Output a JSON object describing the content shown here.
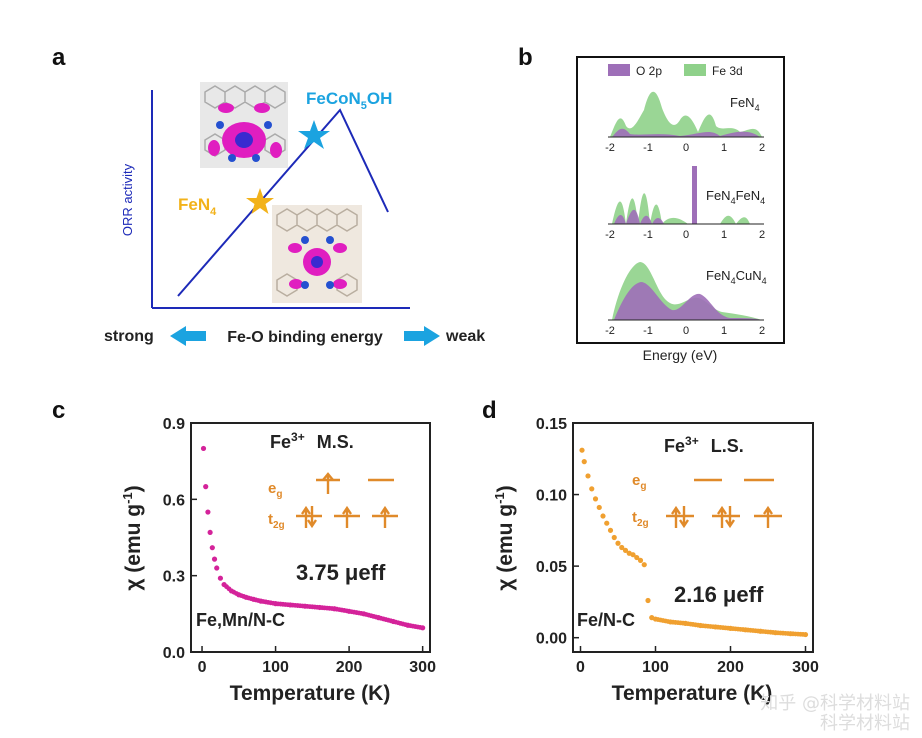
{
  "panel_labels": [
    "a",
    "b",
    "c",
    "d"
  ],
  "panel_a": {
    "ylabel": "ORR activity",
    "xlabel": "Fe-O binding energy",
    "left_label": "strong",
    "right_label": "weak",
    "point_low": {
      "base": "FeN",
      "sub": "4"
    },
    "point_high": {
      "base": "FeCoN",
      "sub": "5",
      "tail": "OH"
    },
    "colors": {
      "axis": "#1d2ab8",
      "arrow": "#1ba3e0",
      "feN4": "#f2b21a",
      "fecon5oh": "#1ba3e0"
    }
  },
  "panel_b": {
    "legend": [
      "O 2p",
      "Fe 3d"
    ],
    "xlabel": "Energy (eV)",
    "ticks": [
      "-2",
      "-1",
      "0",
      "1",
      "2"
    ],
    "subplots": [
      {
        "label_parts": [
          "FeN",
          "4"
        ]
      },
      {
        "label_parts": [
          "FeN",
          "4",
          "FeN",
          "4"
        ]
      },
      {
        "label_parts": [
          "FeN",
          "4",
          "CuN",
          "4"
        ]
      }
    ],
    "colors": {
      "o2p": "#9e6fb8",
      "fe3d": "#8fd18a"
    }
  },
  "chart_data": [
    {
      "type": "scatter",
      "panel": "c",
      "xlabel": "Temperature (K)",
      "ylabel": "χ (emu g-1)",
      "ylabel_parts": [
        "χ (emu g",
        "-1",
        ")"
      ],
      "xlim": [
        -15,
        310
      ],
      "ylim": [
        0.0,
        0.9
      ],
      "xticks": [
        "0",
        "100",
        "200",
        "300"
      ],
      "yticks": [
        "0.0",
        "0.3",
        "0.6",
        "0.9"
      ],
      "color": "#d4239a",
      "annotation": "3.75 μeff",
      "sample": "Fe,Mn/N-C",
      "ion": {
        "base": "Fe",
        "sup": "3+",
        "state": "M.S."
      },
      "orbitals": {
        "upper": "eg",
        "lower": "t2g",
        "upper_sub": "g",
        "lower_sub": "2g"
      },
      "x": [
        2,
        5,
        8,
        11,
        14,
        17,
        20,
        25,
        30,
        40,
        50,
        60,
        70,
        80,
        100,
        120,
        140,
        160,
        180,
        200,
        220,
        240,
        260,
        280,
        300
      ],
      "y": [
        0.8,
        0.65,
        0.55,
        0.47,
        0.41,
        0.365,
        0.33,
        0.29,
        0.265,
        0.24,
        0.225,
        0.215,
        0.207,
        0.2,
        0.19,
        0.185,
        0.18,
        0.175,
        0.17,
        0.16,
        0.15,
        0.135,
        0.12,
        0.105,
        0.095
      ]
    },
    {
      "type": "scatter",
      "panel": "d",
      "xlabel": "Temperature (K)",
      "ylabel": "χ (emu g-1)",
      "ylabel_parts": [
        "χ (emu g",
        "-1",
        ")"
      ],
      "xlim": [
        -10,
        310
      ],
      "ylim": [
        -0.01,
        0.15
      ],
      "xticks": [
        "0",
        "100",
        "200",
        "300"
      ],
      "yticks": [
        "0.00",
        "0.05",
        "0.10",
        "0.15"
      ],
      "color": "#f0a030",
      "annotation": "2.16 μeff",
      "sample": "Fe/N-C",
      "ion": {
        "base": "Fe",
        "sup": "3+",
        "state": "L.S."
      },
      "orbitals": {
        "upper": "eg",
        "lower": "t2g",
        "upper_sub": "g",
        "lower_sub": "2g"
      },
      "x": [
        2,
        5,
        10,
        15,
        20,
        25,
        30,
        35,
        40,
        45,
        50,
        55,
        60,
        65,
        70,
        75,
        80,
        85,
        90,
        95,
        100,
        120,
        140,
        160,
        180,
        200,
        220,
        240,
        260,
        280,
        300
      ],
      "y": [
        0.131,
        0.123,
        0.113,
        0.104,
        0.097,
        0.091,
        0.085,
        0.08,
        0.075,
        0.07,
        0.066,
        0.063,
        0.061,
        0.059,
        0.058,
        0.056,
        0.054,
        0.051,
        0.026,
        0.014,
        0.013,
        0.011,
        0.01,
        0.0085,
        0.0075,
        0.0065,
        0.0055,
        0.0045,
        0.0035,
        0.0028,
        0.0022
      ]
    }
  ],
  "watermark": {
    "line1": "知乎 @科学材料站",
    "line2": "科学材料站"
  }
}
